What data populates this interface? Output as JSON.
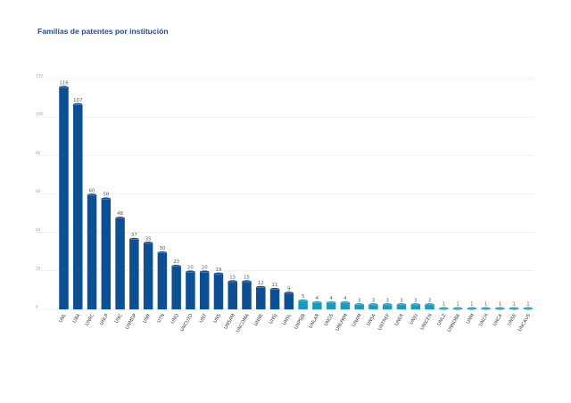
{
  "title": "Familias de patentes por institución",
  "chart_data": {
    "type": "bar",
    "title": "Familias de patentes por institución",
    "xlabel": "",
    "ylabel": "",
    "ylim": [
      0,
      120
    ],
    "yticks": [
      0,
      20,
      40,
      60,
      80,
      100,
      120
    ],
    "grid": true,
    "categories": [
      "UNL",
      "UBA",
      "UNRC",
      "UNLP",
      "UNC",
      "UNMDP",
      "UNR",
      "UTN",
      "UNQ",
      "UNCUYO",
      "UNT",
      "UNS",
      "UNSAM",
      "UNCOMA",
      "UNNE",
      "UNSJ",
      "UNSL",
      "UNPSJB",
      "UNLAR",
      "UNGS",
      "UNLPAM",
      "UNAM",
      "UNSA",
      "UNTREF",
      "UNER",
      "UNJU",
      "UNICEN",
      "UNLZ",
      "UNNOBA",
      "UNM",
      "UNCH",
      "UNCA",
      "UNSE",
      "UNCAUS"
    ],
    "values": [
      116,
      107,
      60,
      58,
      48,
      37,
      35,
      30,
      23,
      20,
      20,
      19,
      15,
      15,
      12,
      11,
      9,
      5,
      4,
      4,
      4,
      3,
      3,
      3,
      3,
      3,
      3,
      1,
      1,
      1,
      1,
      1,
      1,
      1
    ],
    "colors": {
      "dark": "#0c4f92",
      "light": "#1b9bb9",
      "grid": "#e3e3e3"
    }
  }
}
